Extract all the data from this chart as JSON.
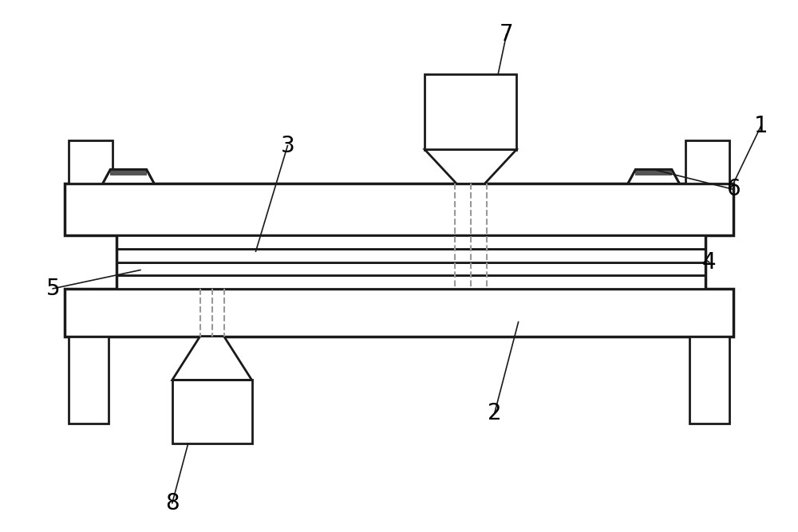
{
  "bg_color": "#ffffff",
  "line_color": "#1a1a1a",
  "dashed_color": "#999999",
  "label_color": "#000000",
  "label_fontsize": 20,
  "lw_main": 2.0,
  "lw_thick": 2.5
}
